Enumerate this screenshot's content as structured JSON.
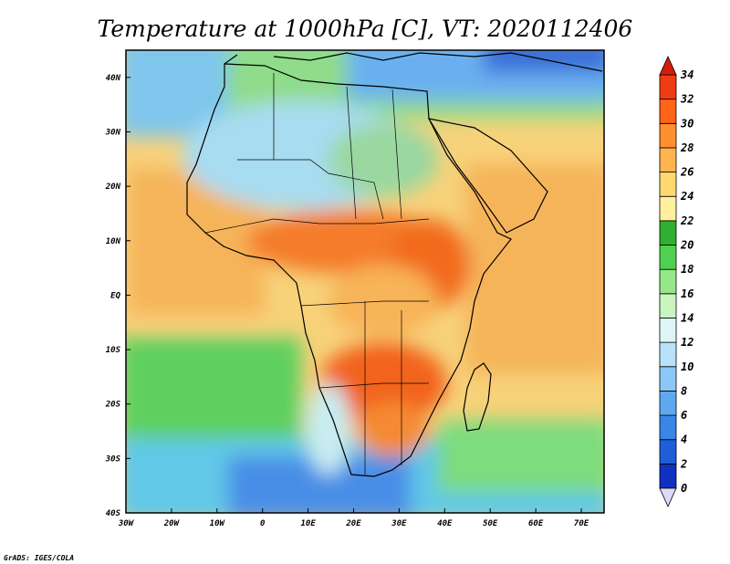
{
  "title": "Temperature at 1000hPa [C], VT: 2020112406",
  "footer": "GrADS: IGES/COLA",
  "map": {
    "region": "Africa",
    "lon_range": [
      -30,
      75
    ],
    "lat_range": [
      -40,
      45
    ],
    "lon_ticks": [
      {
        "value": -30,
        "label": "30W"
      },
      {
        "value": -20,
        "label": "20W"
      },
      {
        "value": -10,
        "label": "10W"
      },
      {
        "value": 0,
        "label": "0"
      },
      {
        "value": 10,
        "label": "10E"
      },
      {
        "value": 20,
        "label": "20E"
      },
      {
        "value": 30,
        "label": "30E"
      },
      {
        "value": 40,
        "label": "40E"
      },
      {
        "value": 50,
        "label": "50E"
      },
      {
        "value": 60,
        "label": "60E"
      },
      {
        "value": 70,
        "label": "70E"
      }
    ],
    "lat_ticks": [
      {
        "value": 40,
        "label": "40N"
      },
      {
        "value": 30,
        "label": "30N"
      },
      {
        "value": 20,
        "label": "20N"
      },
      {
        "value": 10,
        "label": "10N"
      },
      {
        "value": 0,
        "label": "EQ"
      },
      {
        "value": -10,
        "label": "10S"
      },
      {
        "value": -20,
        "label": "20S"
      },
      {
        "value": -30,
        "label": "30S"
      },
      {
        "value": -40,
        "label": "40S"
      }
    ]
  },
  "colorbar": {
    "levels": [
      "0",
      "2",
      "4",
      "6",
      "8",
      "10",
      "12",
      "14",
      "16",
      "18",
      "20",
      "22",
      "24",
      "26",
      "28",
      "30",
      "32",
      "34"
    ],
    "colors": [
      "#0a1a7a",
      "#1030c0",
      "#1e5fd8",
      "#3a85e8",
      "#5fa8f0",
      "#8cc8f5",
      "#b8e2fa",
      "#dff5f5",
      "#c8f5c0",
      "#96e68a",
      "#50d050",
      "#30b030",
      "#fff0a0",
      "#ffd870",
      "#ffb450",
      "#ff9030",
      "#ff6418",
      "#f03c14",
      "#d41e0a"
    ],
    "low_tip": "#e0d8f8",
    "high_tip": "#d41e0a"
  },
  "colors": {
    "hot": "#f36b1f",
    "warm": "#f5c26b",
    "mild": "#f9e29a",
    "cool": "#8fe07d",
    "cold": "#64a9f0",
    "ocean_cool": "#5bd45b",
    "ocean_cold": "#4a9ce8"
  }
}
